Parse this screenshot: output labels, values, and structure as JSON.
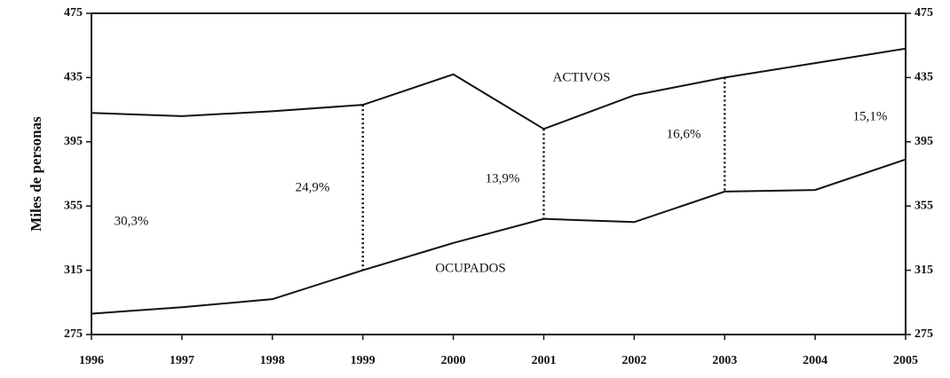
{
  "chart_data": {
    "type": "line",
    "y_label": "Miles de personas",
    "categories": [
      "1996",
      "1997",
      "1998",
      "1999",
      "2000",
      "2001",
      "2002",
      "2003",
      "2004",
      "2005"
    ],
    "series": [
      {
        "name": "ACTIVOS",
        "color": "#111111",
        "values": [
          413,
          411,
          414,
          418,
          437,
          403,
          424,
          435,
          444,
          453
        ]
      },
      {
        "name": "OCUPADOS",
        "color": "#111111",
        "values": [
          288,
          292,
          297,
          315,
          332,
          347,
          345,
          364,
          365,
          384
        ]
      }
    ],
    "annotations": [
      "30,3%",
      "24,9%",
      "13,9%",
      "16,6%",
      "15,1%"
    ],
    "ylim": [
      275,
      475
    ],
    "yticks": [
      275,
      315,
      355,
      395,
      435,
      475
    ],
    "y2lim": [
      275,
      475
    ],
    "y2ticks": [
      275,
      315,
      355,
      395,
      435,
      475
    ],
    "grid": false
  }
}
